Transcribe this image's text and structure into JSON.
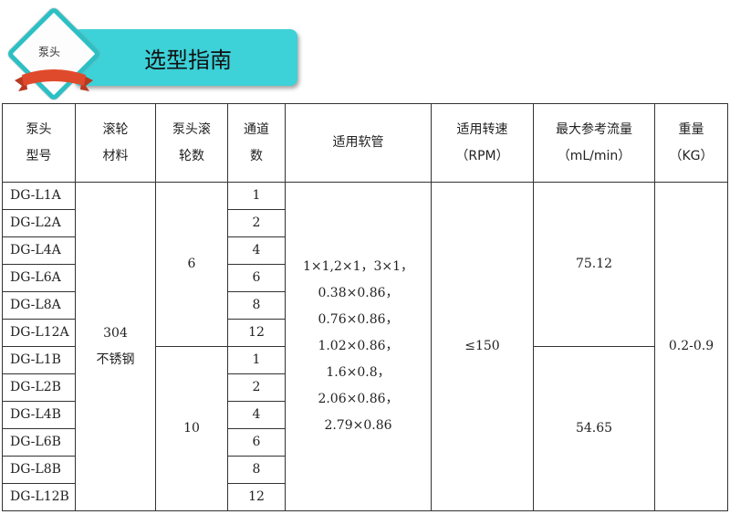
{
  "banner": {
    "badge": "泵头",
    "title": "选型指南"
  },
  "headers": [
    [
      "泵头",
      "型号"
    ],
    [
      "滚轮",
      "材料"
    ],
    [
      "泵头滚",
      "轮数"
    ],
    [
      "通道",
      "数"
    ],
    [
      "适用软管"
    ],
    [
      "适用转速",
      "（RPM）"
    ],
    [
      "最大参考流量",
      "（mL/min）"
    ],
    [
      "重量",
      "（KG）"
    ]
  ],
  "models": [
    "DG-L1A",
    "DG-L2A",
    "DG-L4A",
    "DG-L6A",
    "DG-L8A",
    "DG-L12A",
    "DG-L1B",
    "DG-L2B",
    "DG-L4B",
    "DG-L6B",
    "DG-L8B",
    "DG-L12B"
  ],
  "channels": [
    "1",
    "2",
    "4",
    "6",
    "8",
    "12",
    "1",
    "2",
    "4",
    "6",
    "8",
    "12"
  ],
  "material": [
    "304",
    "不锈钢"
  ],
  "rollers": {
    "a": "6",
    "b": "10"
  },
  "tubing": [
    "1×1,2×1，3×1，",
    "0.38×0.86，",
    "0.76×0.86，",
    "1.02×0.86，",
    "1.6×0.8，",
    "2.06×0.86，",
    "2.79×0.86"
  ],
  "speed": "≤150",
  "flow": {
    "a": "75.12",
    "b": "54.65"
  },
  "weight": "0.2-0.9"
}
